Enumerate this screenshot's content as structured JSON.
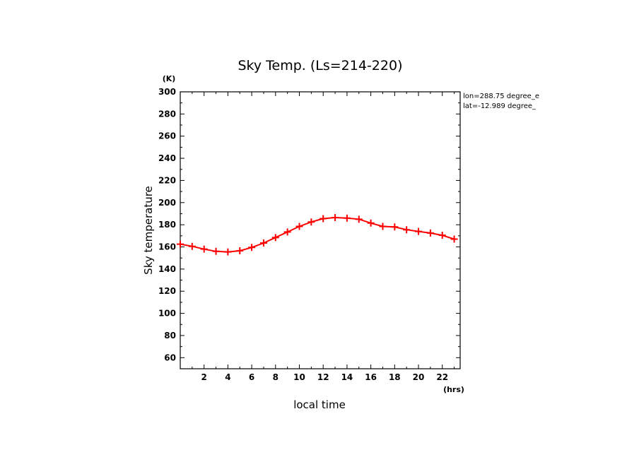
{
  "chart_data": {
    "type": "line",
    "title": "Sky Temp. (Ls=214-220)",
    "xlabel": "local time",
    "ylabel": "Sky temperature",
    "x_unit": "(hrs)",
    "y_unit": "(K)",
    "xlim": [
      0,
      23.5
    ],
    "ylim": [
      50,
      300
    ],
    "x_ticks": [
      2,
      4,
      6,
      8,
      10,
      12,
      14,
      16,
      18,
      20,
      22
    ],
    "y_ticks": [
      60,
      80,
      100,
      120,
      140,
      160,
      180,
      200,
      220,
      240,
      260,
      280,
      300
    ],
    "info_lines": [
      "lon=288.75 degree_e",
      "lat=-12.989 degree_"
    ],
    "series_color": "#ff0000",
    "series": [
      {
        "x": [
          0,
          1,
          2,
          3,
          4,
          5,
          6,
          7,
          8,
          9,
          10,
          11,
          12,
          13,
          14,
          15,
          16,
          17,
          18,
          19,
          20,
          21,
          22,
          23
        ],
        "y": [
          162.5,
          160.5,
          158,
          156,
          155.5,
          156.5,
          159.5,
          163.5,
          168.5,
          173.5,
          178.5,
          182.5,
          185.5,
          186.5,
          186,
          185,
          181.5,
          178.5,
          178,
          175.5,
          174,
          172.5,
          170.5,
          167
        ]
      }
    ]
  }
}
